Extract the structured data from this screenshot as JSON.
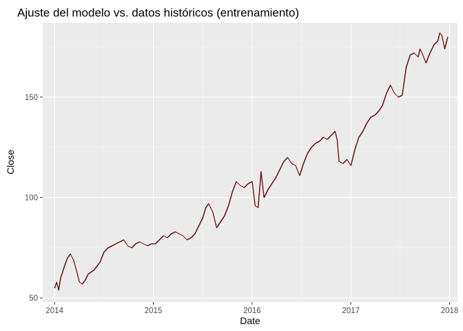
{
  "chart_data": {
    "type": "line",
    "title": "Ajuste del modelo vs. datos históricos (entrenamiento)",
    "xlabel": "Date",
    "ylabel": "Close",
    "xlim": [
      2013.88,
      2018.08
    ],
    "ylim": [
      48,
      187
    ],
    "x_ticks": [
      2014,
      2015,
      2016,
      2017,
      2018
    ],
    "x_tick_labels": [
      "2014",
      "2015",
      "2016",
      "2017",
      "2018"
    ],
    "y_ticks": [
      50,
      100,
      150
    ],
    "y_tick_labels": [
      "50",
      "100",
      "150"
    ],
    "grid": true,
    "legend": "none",
    "colors": {
      "panel": "#ebebeb",
      "grid_major": "#ffffff",
      "grid_minor": "#f5f5f5",
      "observed": "#000000",
      "fitted": "#cc0000"
    },
    "series": [
      {
        "x": [
          2014.0,
          2014.02,
          2014.04,
          2014.06,
          2014.08,
          2014.1,
          2014.13,
          2014.16,
          2014.19,
          2014.22,
          2014.25,
          2014.28,
          2014.31,
          2014.34,
          2014.37,
          2014.4,
          2014.43,
          2014.46,
          2014.5,
          2014.54,
          2014.58,
          2014.62,
          2014.66,
          2014.7,
          2014.74,
          2014.78,
          2014.82,
          2014.86,
          2014.9,
          2014.94,
          2014.98,
          2015.02,
          2015.06,
          2015.1,
          2015.14,
          2015.18,
          2015.22,
          2015.26,
          2015.3,
          2015.34,
          2015.38,
          2015.42,
          2015.46,
          2015.5,
          2015.53,
          2015.56,
          2015.6,
          2015.64,
          2015.68,
          2015.72,
          2015.76,
          2015.8,
          2015.84,
          2015.88,
          2015.92,
          2015.96,
          2016.0,
          2016.03,
          2016.06,
          2016.09,
          2016.12,
          2016.16,
          2016.2,
          2016.24,
          2016.28,
          2016.32,
          2016.36,
          2016.4,
          2016.44,
          2016.48,
          2016.52,
          2016.56,
          2016.6,
          2016.64,
          2016.68,
          2016.72,
          2016.76,
          2016.8,
          2016.84,
          2016.86,
          2016.88,
          2016.92,
          2016.96,
          2017.0,
          2017.04,
          2017.08,
          2017.12,
          2017.16,
          2017.2,
          2017.24,
          2017.28,
          2017.32,
          2017.36,
          2017.4,
          2017.44,
          2017.48,
          2017.52,
          2017.54,
          2017.56,
          2017.6,
          2017.64,
          2017.68,
          2017.7,
          2017.72,
          2017.76,
          2017.8,
          2017.84,
          2017.88,
          2017.9,
          2017.92,
          2017.95,
          2017.98
        ],
        "y": [
          55,
          58,
          54,
          60,
          63,
          66,
          70,
          72,
          69,
          64,
          58,
          57,
          59,
          62,
          63,
          64,
          66,
          68,
          73,
          75,
          76,
          77,
          78,
          79,
          76,
          75,
          77,
          78,
          77,
          76,
          77,
          77,
          79,
          81,
          80,
          82,
          83,
          82,
          81,
          79,
          80,
          82,
          86,
          90,
          95,
          97,
          93,
          85,
          88,
          91,
          96,
          103,
          108,
          106,
          105,
          107,
          108,
          96,
          95,
          113,
          100,
          104,
          107,
          110,
          114,
          118,
          120,
          117,
          116,
          111,
          117,
          122,
          125,
          127,
          128,
          130,
          129,
          131,
          133,
          129,
          118,
          117,
          119,
          116,
          124,
          130,
          133,
          137,
          140,
          141,
          143,
          146,
          152,
          156,
          152,
          150,
          151,
          158,
          165,
          171,
          172,
          170,
          174,
          172,
          167,
          172,
          176,
          178,
          182,
          181,
          174,
          180
        ]
      }
    ]
  }
}
